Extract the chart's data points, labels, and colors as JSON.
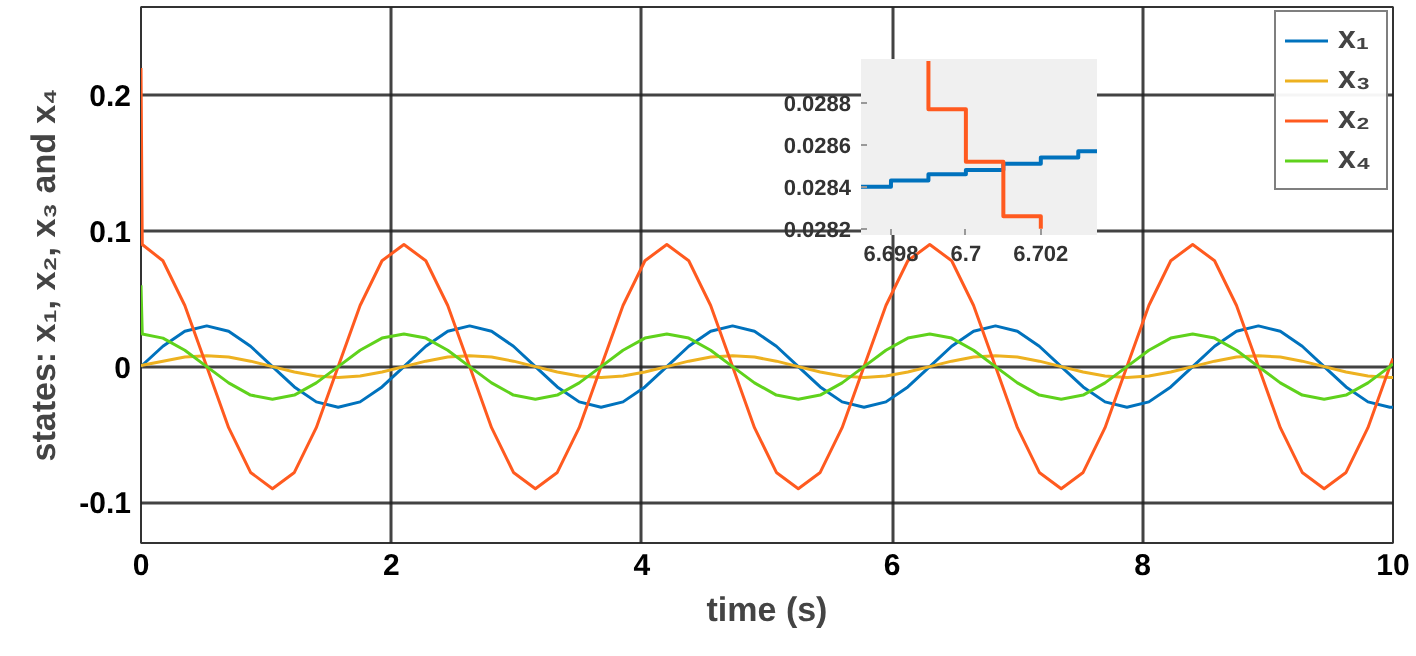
{
  "chart_data": [
    {
      "type": "line",
      "xlabel": "time (s)",
      "ylabel": "states: x₁, x₂, x₃ and x₄",
      "xlim": [
        0,
        10
      ],
      "ylim": [
        -0.13,
        0.265
      ],
      "xticks": [
        0,
        2,
        4,
        6,
        8,
        10
      ],
      "yticks": [
        -0.1,
        0,
        0.1,
        0.2
      ],
      "grid": true,
      "legend": "top right",
      "x": [
        0,
        0.01,
        0.175,
        0.35,
        0.525,
        0.7,
        0.875,
        1.05,
        1.225,
        1.4,
        1.575,
        1.75,
        1.925,
        2.1,
        2.275,
        2.45,
        2.625,
        2.8,
        2.975,
        3.15,
        3.325,
        3.5,
        3.675,
        3.85,
        4.025,
        4.2,
        4.375,
        4.55,
        4.725,
        4.9,
        5.075,
        5.25,
        5.425,
        5.6,
        5.775,
        5.95,
        6.125,
        6.3,
        6.475,
        6.65,
        6.825,
        7.0,
        7.175,
        7.35,
        7.525,
        7.7,
        7.875,
        8.05,
        8.225,
        8.4,
        8.575,
        8.75,
        8.925,
        9.1,
        9.275,
        9.45,
        9.625,
        9.8,
        9.975,
        10
      ],
      "series": [
        {
          "name": "x₁",
          "color": "#0072bd",
          "values": [
            0,
            0.001,
            0.015,
            0.026,
            0.03,
            0.026,
            0.015,
            0,
            -0.015,
            -0.026,
            -0.03,
            -0.026,
            -0.015,
            0,
            0.015,
            0.026,
            0.03,
            0.026,
            0.015,
            0,
            -0.015,
            -0.026,
            -0.03,
            -0.026,
            -0.015,
            0,
            0.015,
            0.026,
            0.03,
            0.026,
            0.015,
            0,
            -0.015,
            -0.026,
            -0.03,
            -0.026,
            -0.015,
            0,
            0.015,
            0.026,
            0.03,
            0.026,
            0.015,
            0,
            -0.015,
            -0.026,
            -0.03,
            -0.026,
            -0.015,
            0,
            0.015,
            0.026,
            0.03,
            0.026,
            0.015,
            0,
            -0.015,
            -0.026,
            -0.03,
            -0.03
          ]
        },
        {
          "name": "x₃",
          "color": "#edb120",
          "values": [
            0,
            0.001,
            0.004,
            0.007,
            0.008,
            0.007,
            0.004,
            0,
            -0.004,
            -0.007,
            -0.008,
            -0.007,
            -0.004,
            0,
            0.004,
            0.007,
            0.008,
            0.007,
            0.004,
            0,
            -0.004,
            -0.007,
            -0.008,
            -0.007,
            -0.004,
            0,
            0.004,
            0.007,
            0.008,
            0.007,
            0.004,
            0,
            -0.004,
            -0.007,
            -0.008,
            -0.007,
            -0.004,
            0,
            0.004,
            0.007,
            0.008,
            0.007,
            0.004,
            0,
            -0.004,
            -0.007,
            -0.008,
            -0.007,
            -0.004,
            0,
            0.004,
            0.007,
            0.008,
            0.007,
            0.004,
            0,
            -0.004,
            -0.007,
            -0.008,
            -0.008
          ]
        },
        {
          "name": "x₂",
          "color": "#ff5a1f",
          "values": [
            0.22,
            0.09,
            0.078,
            0.045,
            0,
            -0.045,
            -0.078,
            -0.09,
            -0.078,
            -0.045,
            0,
            0.045,
            0.078,
            0.09,
            0.078,
            0.045,
            0,
            -0.045,
            -0.078,
            -0.09,
            -0.078,
            -0.045,
            0,
            0.045,
            0.078,
            0.09,
            0.078,
            0.045,
            0,
            -0.045,
            -0.078,
            -0.09,
            -0.078,
            -0.045,
            0,
            0.045,
            0.078,
            0.09,
            0.078,
            0.045,
            0,
            -0.045,
            -0.078,
            -0.09,
            -0.078,
            -0.045,
            0,
            0.045,
            0.078,
            0.09,
            0.078,
            0.045,
            0,
            -0.045,
            -0.078,
            -0.09,
            -0.078,
            -0.045,
            0,
            0.006
          ]
        },
        {
          "name": "x₄",
          "color": "#5fd21c",
          "values": [
            0.06,
            0.024,
            0.021,
            0.012,
            0,
            -0.012,
            -0.021,
            -0.024,
            -0.021,
            -0.012,
            0,
            0.012,
            0.021,
            0.024,
            0.021,
            0.012,
            0,
            -0.012,
            -0.021,
            -0.024,
            -0.021,
            -0.012,
            0,
            0.012,
            0.021,
            0.024,
            0.021,
            0.012,
            0,
            -0.012,
            -0.021,
            -0.024,
            -0.021,
            -0.012,
            0,
            0.012,
            0.021,
            0.024,
            0.021,
            0.012,
            0,
            -0.012,
            -0.021,
            -0.024,
            -0.021,
            -0.012,
            0,
            0.012,
            0.021,
            0.024,
            0.021,
            0.012,
            0,
            -0.012,
            -0.021,
            -0.024,
            -0.021,
            -0.012,
            0,
            0.002
          ]
        }
      ]
    },
    {
      "type": "step",
      "xlim": [
        6.6972,
        6.7035
      ],
      "ylim": [
        0.02817,
        0.02901
      ],
      "xticks": [
        6.698,
        6.7,
        6.702
      ],
      "yticks": [
        0.0282,
        0.0284,
        0.0286,
        0.0288
      ],
      "series": [
        {
          "color": "#0072bd",
          "x": [
            6.6972,
            6.698,
            6.699,
            6.7,
            6.701,
            6.702,
            6.703,
            6.7035
          ],
          "values": [
            0.0284,
            0.02843,
            0.02846,
            0.02848,
            0.02851,
            0.02854,
            0.02857,
            0.02857
          ]
        },
        {
          "color": "#ff5a1f",
          "x": [
            6.699,
            6.699,
            6.7,
            6.701,
            6.702
          ],
          "values": [
            0.029,
            0.02877,
            0.02852,
            0.02826,
            0.0282
          ]
        }
      ]
    }
  ]
}
